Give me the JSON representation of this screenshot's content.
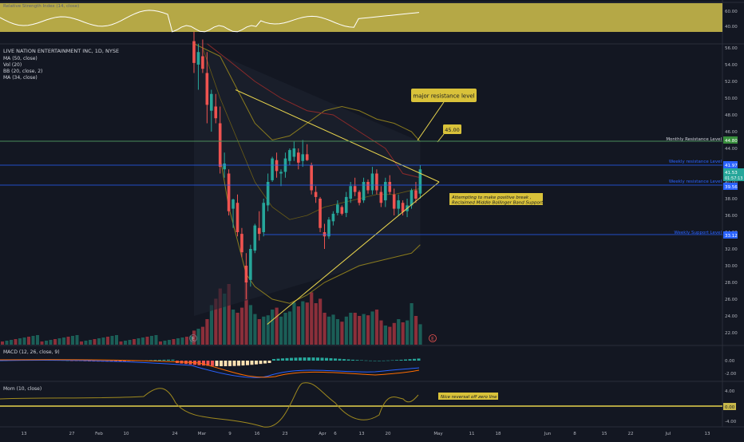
{
  "symbol_title": "LIVE NATION ENTERTAINMENT INC, 1D, NYSE",
  "indicators_legend": [
    "MA (50, close)",
    "Vol (20)",
    "BB (20, close, 2)",
    "MA (34, close)"
  ],
  "rsi_panel": {
    "label": "Relative Strength Index (14, close)",
    "ticks": [
      "60.00",
      "40.00"
    ]
  },
  "macd_panel": {
    "label": "MACD (12, 26, close, 9)",
    "ticks": [
      "0.00",
      "-2.00"
    ]
  },
  "mom_panel": {
    "label": "Mom (10, close)",
    "ticks": [
      "4.00",
      "-4.00"
    ],
    "zero_tag": "0.00"
  },
  "price_axis_ticks": [
    "56.00",
    "54.00",
    "52.00",
    "50.00",
    "48.00",
    "46.00",
    "44.00",
    "42.00",
    "40.00",
    "38.00",
    "36.00",
    "34.00",
    "32.00",
    "30.00",
    "28.00",
    "26.00",
    "24.00",
    "22.00"
  ],
  "time_axis_ticks": [
    "13",
    "27",
    "Feb",
    "10",
    "24",
    "Mar",
    "9",
    "16",
    "23",
    "Apr",
    "6",
    "13",
    "20",
    "May",
    "11",
    "18",
    "Jun",
    "8",
    "15",
    "22",
    "Jul",
    "13"
  ],
  "annotations": {
    "major_resistance": "major resistance level",
    "target_price": "45.00",
    "monthly_resistance": "Monthly Resistance Level",
    "weekly_resistance_upper": "Weekly resistance Level",
    "weekly_resistance_lower": "Weekly resistance Level",
    "weekly_support": "Weekly Support Level",
    "breakout_note_line1": "Attempting to make positive break ,",
    "breakout_note_line2": "Reclaimed Middle Bollinger Band Support",
    "mom_note": "Nice reversal off zero line",
    "earnings_marker": "E"
  },
  "price_tags": {
    "monthly_resistance": "44.80",
    "weekly_resistance_upper": "41.97",
    "current_price": "41.53",
    "current_time": "01:57:13",
    "weekly_resistance_lower": "39.56",
    "weekly_support": "33.12"
  },
  "colors": {
    "background": "#131722",
    "up_candle": "#26a69a",
    "down_candle": "#ef5350",
    "up_volume": "#1b5e57",
    "down_volume": "#8b2f3a",
    "rsi_fill": "#c8b84a",
    "bollinger": "#8a7b1e",
    "ma50": "#8b2a2a",
    "triangle": "#e8d44d",
    "annotation_box": "#d9c23a",
    "h_line_green": "#4a8c5a",
    "h_line_blue": "#2962ff",
    "macd_line": "#2962ff",
    "signal_line": "#ff6d00",
    "mom_line": "#a08a1e",
    "mom_zero": "#e8d44d"
  },
  "chart_data": {
    "type": "candlestick",
    "title": "LIVE NATION ENTERTAINMENT INC, 1D, NYSE",
    "xlabel": "",
    "ylabel": "",
    "ylim": [
      20.5,
      56.5
    ],
    "candles": [
      [
        56.8,
        58.0,
        53.0,
        54.2
      ],
      [
        54.0,
        56.5,
        51.0,
        55.5
      ],
      [
        55.0,
        57.0,
        53.0,
        53.5
      ],
      [
        53.0,
        55.5,
        47.0,
        49.2
      ],
      [
        48.5,
        51.0,
        46.0,
        50.5
      ],
      [
        49.0,
        50.5,
        47.0,
        47.6
      ],
      [
        47.0,
        49.0,
        41.0,
        41.8
      ],
      [
        41.5,
        43.5,
        40.5,
        42.2
      ],
      [
        41.0,
        41.5,
        36.0,
        36.5
      ],
      [
        36.8,
        38.0,
        34.5,
        37.9
      ],
      [
        37.5,
        38.5,
        33.5,
        34.0
      ],
      [
        33.8,
        34.5,
        31.0,
        31.6
      ],
      [
        30.0,
        31.5,
        26.0,
        28.0
      ],
      [
        28.3,
        32.5,
        27.5,
        32.0
      ],
      [
        31.8,
        35.0,
        31.5,
        34.8
      ],
      [
        34.5,
        36.5,
        33.0,
        33.8
      ],
      [
        34.0,
        38.0,
        33.5,
        37.5
      ],
      [
        37.2,
        41.0,
        36.5,
        40.0
      ],
      [
        40.2,
        43.0,
        40.0,
        42.8
      ],
      [
        42.6,
        43.5,
        40.5,
        41.3
      ],
      [
        41.0,
        41.5,
        39.5,
        41.2
      ],
      [
        41.2,
        43.5,
        40.5,
        42.8
      ],
      [
        42.5,
        44.0,
        42.0,
        43.8
      ],
      [
        43.0,
        44.8,
        42.5,
        44.0
      ],
      [
        43.5,
        44.0,
        41.5,
        42.3
      ],
      [
        42.5,
        45.0,
        41.8,
        43.3
      ],
      [
        43.3,
        44.5,
        42.5,
        42.6
      ],
      [
        42.0,
        42.3,
        38.5,
        39.0
      ],
      [
        38.8,
        39.5,
        37.5,
        38.2
      ],
      [
        38.0,
        38.2,
        34.0,
        34.5
      ],
      [
        34.0,
        35.0,
        32.0,
        33.5
      ],
      [
        33.5,
        35.8,
        33.2,
        35.5
      ],
      [
        35.3,
        36.5,
        34.8,
        36.2
      ],
      [
        36.3,
        37.8,
        36.0,
        37.3
      ],
      [
        37.0,
        37.2,
        36.0,
        36.2
      ],
      [
        36.3,
        38.8,
        35.8,
        38.2
      ],
      [
        38.0,
        40.0,
        37.5,
        39.5
      ],
      [
        39.5,
        40.5,
        38.3,
        38.8
      ],
      [
        38.8,
        39.0,
        37.2,
        37.5
      ],
      [
        37.8,
        40.5,
        37.5,
        40.0
      ],
      [
        40.0,
        40.3,
        38.6,
        39.0
      ],
      [
        39.0,
        41.8,
        38.5,
        41.0
      ],
      [
        41.0,
        41.5,
        38.5,
        39.0
      ],
      [
        38.8,
        39.5,
        37.0,
        37.5
      ],
      [
        37.8,
        40.5,
        37.0,
        40.0
      ],
      [
        40.0,
        40.8,
        38.5,
        38.8
      ],
      [
        38.5,
        39.2,
        36.0,
        36.8
      ],
      [
        36.8,
        38.5,
        36.0,
        37.8
      ],
      [
        37.5,
        37.8,
        36.0,
        36.4
      ],
      [
        36.5,
        38.0,
        35.8,
        37.2
      ],
      [
        37.2,
        39.2,
        36.8,
        39.0
      ],
      [
        39.0,
        40.0,
        37.5,
        38.0
      ],
      [
        38.6,
        42.0,
        38.0,
        41.5
      ]
    ],
    "volume_relative": [
      0.22,
      0.25,
      0.28,
      0.4,
      0.62,
      0.72,
      0.88,
      0.8,
      0.95,
      0.55,
      0.5,
      0.58,
      1.0,
      0.62,
      0.48,
      0.4,
      0.44,
      0.46,
      0.55,
      0.58,
      0.44,
      0.5,
      0.52,
      0.66,
      0.6,
      0.68,
      0.66,
      0.82,
      0.65,
      0.72,
      0.5,
      0.44,
      0.47,
      0.4,
      0.36,
      0.44,
      0.5,
      0.5,
      0.45,
      0.48,
      0.46,
      0.52,
      0.55,
      0.38,
      0.3,
      0.28,
      0.34,
      0.4,
      0.35,
      0.38,
      0.65,
      0.45,
      0.32
    ],
    "triangle": {
      "top_left": [
        0,
        51.0
      ],
      "apex": [
        38,
        40.0
      ],
      "bottom_left": [
        4,
        23.0
      ]
    }
  }
}
